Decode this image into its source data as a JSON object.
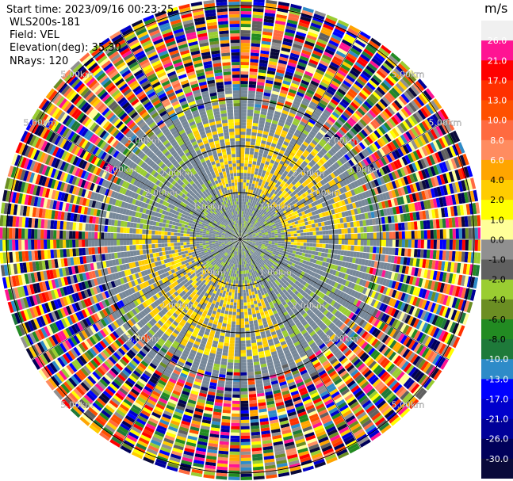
{
  "header": {
    "start_time": "Start time: 2023/09/16 00:23:25",
    "instrument": "WLS200s-181",
    "field": "Field: VEL",
    "elevation": "Elevation(deg): 35.30",
    "nrays": "NRays: 120"
  },
  "chart_data": {
    "type": "heatmap",
    "projection": "polar (PPI scan)",
    "nrays": 120,
    "range_rings_km": [
      1.0,
      2.0,
      3.0,
      5.0
    ],
    "ring_labels": [
      "1.00km",
      "2.00km",
      "3.00km",
      "5.00km"
    ],
    "colorbar": {
      "unit": "m/s",
      "tick_labels": [
        "26.0",
        "21.0",
        "17.0",
        "13.0",
        "10.0",
        "8.0",
        "6.0",
        "4.0",
        "2.0",
        "1.0",
        "0.0",
        "-1.0",
        "-2.0",
        "-4.0",
        "-6.0",
        "-8.0",
        "-10.0",
        "-13.0",
        "-17.0",
        "-21.0",
        "-26.0",
        "-30.0"
      ],
      "colors": [
        "#f0f0f0",
        "#ff1493",
        "#ff0000",
        "#ff3000",
        "#ff5000",
        "#ff6a40",
        "#ff8c60",
        "#ffa500",
        "#ffcc00",
        "#ffff00",
        "#ffff99",
        "#909090",
        "#606060",
        "#9acd32",
        "#6b8e23",
        "#228b22",
        "#1e7a3a",
        "#2e8bc8",
        "#0000ff",
        "#0000cc",
        "#000099",
        "#00005a",
        "#0a0a3a"
      ]
    }
  },
  "colors": {
    "background": "#ffffff",
    "grid": "#000000",
    "noise_gray": "#778899"
  }
}
